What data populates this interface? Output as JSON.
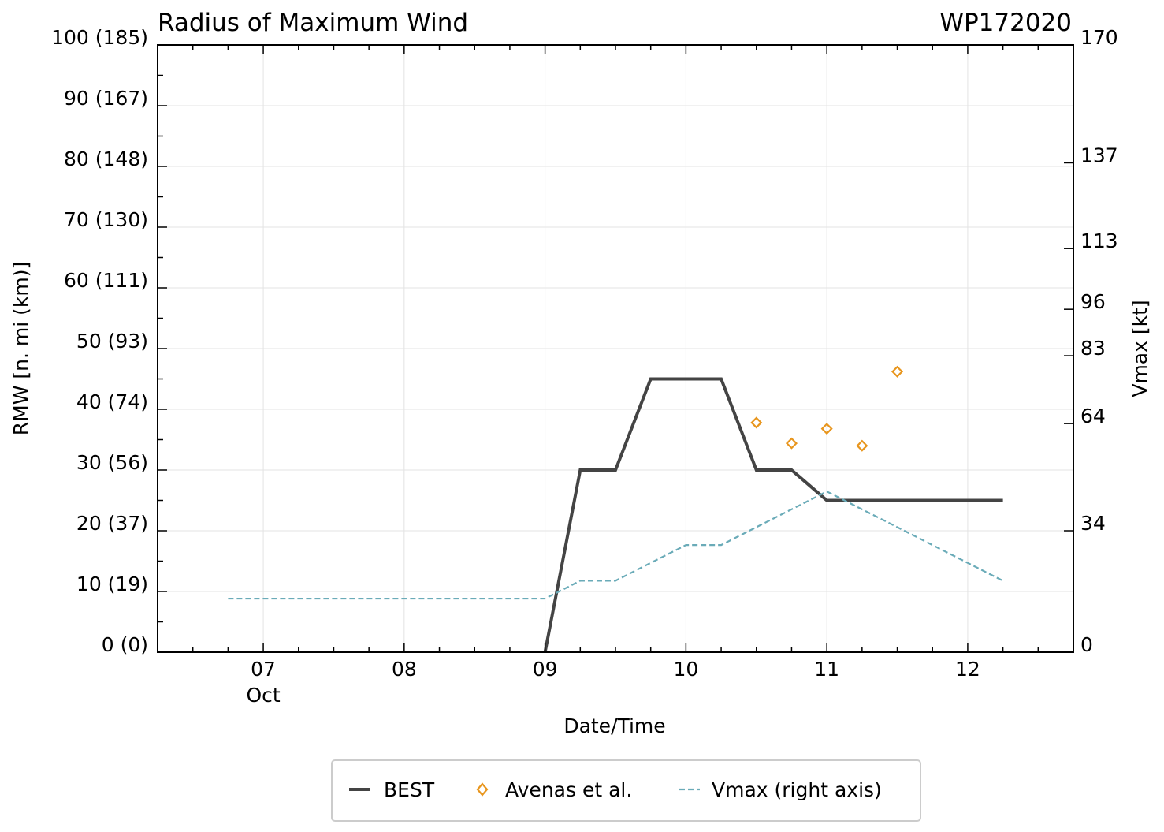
{
  "chart_data": {
    "type": "line",
    "title": "Radius of Maximum Wind",
    "storm_id": "WP172020",
    "xlabel": "Date/Time",
    "ylabel": "RMW [n. mi (km)]",
    "y2label": "Vmax [kt]",
    "x_unit": "day of October 2020",
    "xlim": [
      6.25,
      12.75
    ],
    "ylim": [
      0,
      100
    ],
    "y2lim": [
      0,
      170
    ],
    "x_ticks": [
      {
        "value": 7,
        "label": "07",
        "sublabel": "Oct"
      },
      {
        "value": 8,
        "label": "08",
        "sublabel": ""
      },
      {
        "value": 9,
        "label": "09",
        "sublabel": ""
      },
      {
        "value": 10,
        "label": "10",
        "sublabel": ""
      },
      {
        "value": 11,
        "label": "11",
        "sublabel": ""
      },
      {
        "value": 12,
        "label": "12",
        "sublabel": ""
      }
    ],
    "y_ticks": [
      {
        "value": 0,
        "label": "0 (0)"
      },
      {
        "value": 10,
        "label": "10 (19)"
      },
      {
        "value": 20,
        "label": "20 (37)"
      },
      {
        "value": 30,
        "label": "30 (56)"
      },
      {
        "value": 40,
        "label": "40 (74)"
      },
      {
        "value": 50,
        "label": "50 (93)"
      },
      {
        "value": 60,
        "label": "60 (111)"
      },
      {
        "value": 70,
        "label": "70 (130)"
      },
      {
        "value": 80,
        "label": "80 (148)"
      },
      {
        "value": 90,
        "label": "90 (167)"
      },
      {
        "value": 100,
        "label": "100 (185)"
      }
    ],
    "y2_ticks": [
      {
        "value": 0,
        "label": "0"
      },
      {
        "value": 34,
        "label": "34"
      },
      {
        "value": 64,
        "label": "64"
      },
      {
        "value": 83,
        "label": "83"
      },
      {
        "value": 96,
        "label": "96"
      },
      {
        "value": 113,
        "label": "113"
      },
      {
        "value": 137,
        "label": "137"
      },
      {
        "value": 170,
        "label": "170"
      }
    ],
    "grid": true,
    "legend_position": "bottom-center",
    "series": [
      {
        "name": "BEST",
        "kind": "line",
        "axis": "left",
        "color": "#444444",
        "x": [
          9.0,
          9.25,
          9.5,
          9.75,
          10.0,
          10.25,
          10.5,
          10.75,
          11.0,
          11.25,
          11.5,
          11.75,
          12.0,
          12.25
        ],
        "y": [
          0,
          30,
          30,
          45,
          45,
          45,
          30,
          30,
          25,
          25,
          25,
          25,
          25,
          25
        ]
      },
      {
        "name": "Avenas et al.",
        "kind": "scatter",
        "marker": "diamond",
        "axis": "left",
        "color": "#e8961e",
        "x": [
          10.5,
          10.75,
          11.0,
          11.25,
          11.5
        ],
        "y": [
          37.8,
          34.4,
          36.8,
          34.0,
          46.2
        ]
      },
      {
        "name": "Vmax (right axis)",
        "kind": "dashed-line",
        "axis": "right",
        "color": "#6aabb8",
        "x": [
          6.75,
          7.0,
          7.25,
          7.5,
          7.75,
          8.0,
          8.25,
          8.5,
          8.75,
          9.0,
          9.25,
          9.5,
          9.75,
          10.0,
          10.25,
          10.5,
          10.75,
          11.0,
          11.25,
          11.5,
          11.75,
          12.0,
          12.25
        ],
        "y": [
          15,
          15,
          15,
          15,
          15,
          15,
          15,
          15,
          15,
          15,
          20,
          20,
          25,
          30,
          30,
          35,
          40,
          45,
          40,
          35,
          30,
          25,
          20
        ]
      }
    ]
  }
}
